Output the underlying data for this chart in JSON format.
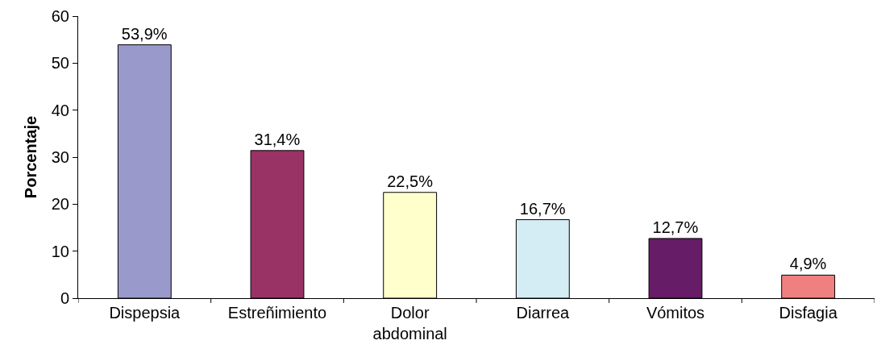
{
  "chart_data": {
    "type": "bar",
    "ylabel": "Porcentaje",
    "categories": [
      "Dispepsia",
      "Estreñimiento",
      "Dolor abdominal",
      "Diarrea",
      "Vómitos",
      "Disfagia"
    ],
    "values": [
      53.9,
      31.4,
      22.5,
      16.7,
      12.7,
      4.9
    ],
    "colors": [
      "#9999cc",
      "#993366",
      "#ffffcc",
      "#d4edf4",
      "#661c66",
      "#f08080"
    ],
    "value_labels": [
      "53,9%",
      "31,4%",
      "22,5%",
      "16,7%",
      "12,7%",
      "4,9%"
    ],
    "ylim": [
      0,
      60
    ],
    "yticks": [
      0,
      10,
      20,
      30,
      40,
      50,
      60
    ]
  }
}
